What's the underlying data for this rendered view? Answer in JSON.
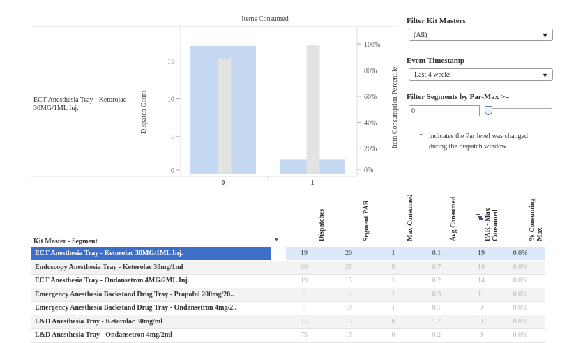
{
  "chart": {
    "title": "Items Consumed",
    "row_label": "ECT Anesthesia Tray - Ketorolac 30MG/1ML Inj.",
    "y_left_title": "Dispatch Count",
    "y_right_title": "Item Consumption Percentile",
    "left_ticks": [
      "0",
      "5",
      "10",
      "15"
    ],
    "right_ticks": [
      "0%",
      "20%",
      "40%",
      "60%",
      "80%",
      "100%"
    ]
  },
  "chart_data": {
    "type": "bar",
    "title": "Items Consumed",
    "categories": [
      "0",
      "1"
    ],
    "series": [
      {
        "values": [
          17,
          2
        ],
        "axis": "left"
      },
      {
        "values": [
          0.89,
          0.99
        ],
        "axis": "right"
      }
    ],
    "ylabel": "Dispatch Count",
    "y2label": "Item Consumption Percentile",
    "ylim": [
      0,
      18
    ],
    "y2lim": [
      0,
      1.06
    ],
    "colors": {
      "bar": "#c6d9f3",
      "overlay": "#e3e3e3"
    }
  },
  "filters": {
    "kit_masters_title": "Filter Kit Masters",
    "kit_masters_value": "(All)",
    "event_title": "Event Timestamp",
    "event_value": "Last 4 weeks",
    "segments_title": "Filter Segments by Par-Max >=",
    "segments_value": "0",
    "slider_fraction": 0,
    "note_star": "*",
    "note_line1": "indicates the Par level was changed",
    "note_line2": "during the dispatch window"
  },
  "table": {
    "left_header": "Kit Master - Segment",
    "star_header": "*",
    "columns": [
      "Dispatches",
      "Segment PAR",
      "Max Consumed",
      "Avg Consumed",
      "PAR - Max Consumed",
      "% Consuming Max"
    ],
    "rows": [
      {
        "name": "ECT Anesthesia Tray - Ketorolac 30MG/1ML Inj.",
        "cells": [
          "19",
          "20",
          "1",
          "0.1",
          "19",
          "0.0%"
        ],
        "selected": true
      },
      {
        "name": "Endoscopy Anesthesia Tray - Ketorolac 30mg/1ml",
        "cells": [
          "60",
          "25",
          "9",
          "0.7",
          "16",
          "0.0%"
        ]
      },
      {
        "name": "ECT Anesthesia Tray - Ondansetron 4MG/2ML Inj.",
        "cells": [
          "19",
          "15",
          "1",
          "0.2",
          "14",
          "0.0%"
        ]
      },
      {
        "name": "Emergency Anesthesia Backstand Drug Tray - Propofol 200mg/20..",
        "cells": [
          "8",
          "12",
          "1",
          "0.3",
          "11",
          "0.0%"
        ]
      },
      {
        "name": "Emergency Anesthesia Backstand Drug Tray - Ondansetron 4mg/2..",
        "cells": [
          "8",
          "10",
          "1",
          "0.1",
          "9",
          "0.0%"
        ]
      },
      {
        "name": "L&D Anesthesia Tray - Ketorolac 30mg/ml",
        "cells": [
          "75",
          "15",
          "6",
          "1.7",
          "9",
          "0.0%"
        ]
      },
      {
        "name": "L&D Anesthesia Tray - Ondansetron 4mg/2ml",
        "cells": [
          "75",
          "15",
          "6",
          "0.2",
          "9",
          "0.0%"
        ]
      }
    ]
  },
  "icons": {
    "sort": "sort-bars-icon",
    "dropdown": "triangle-down-icon"
  }
}
